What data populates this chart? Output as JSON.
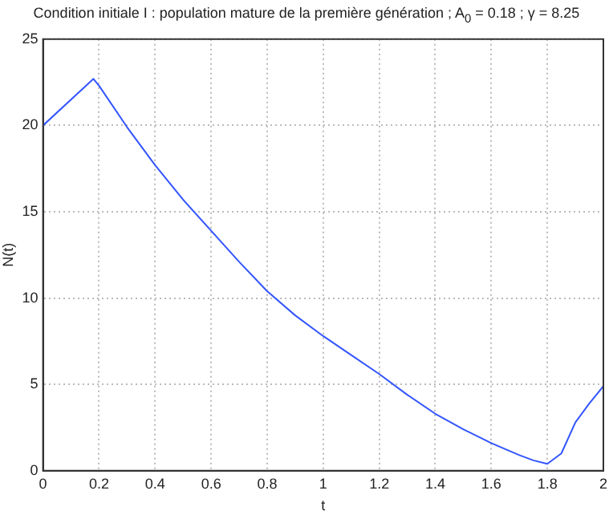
{
  "chart_data": {
    "type": "line",
    "title": "Condition initiale I : population mature de la première génération ; A$_{0}$ = 0.18 ; γ = 8.25",
    "xlabel": "t",
    "ylabel": "N(t)",
    "series": [
      {
        "color": "#3355ff",
        "x": [
          0,
          0.18,
          0.2,
          0.3,
          0.4,
          0.5,
          0.6,
          0.7,
          0.8,
          0.9,
          1.0,
          1.1,
          1.2,
          1.3,
          1.4,
          1.5,
          1.6,
          1.7,
          1.75,
          1.8,
          1.85,
          1.9,
          1.95,
          2.0
        ],
        "values": [
          20,
          22.7,
          22.3,
          19.9,
          17.7,
          15.7,
          13.9,
          12.1,
          10.4,
          9.0,
          7.8,
          6.7,
          5.6,
          4.4,
          3.3,
          2.4,
          1.6,
          0.9,
          0.6,
          0.4,
          1.0,
          2.8,
          3.9,
          4.9
        ]
      }
    ],
    "xlim": [
      0,
      2
    ],
    "xticks": [
      0,
      0.2,
      0.4,
      0.6,
      0.8,
      1,
      1.2,
      1.4,
      1.6,
      1.8,
      2
    ],
    "ylim": [
      0,
      25
    ],
    "yticks": [
      0,
      5,
      10,
      15,
      20,
      25
    ],
    "grid": true,
    "legend": false,
    "marker": "none",
    "line_style": "solid"
  }
}
